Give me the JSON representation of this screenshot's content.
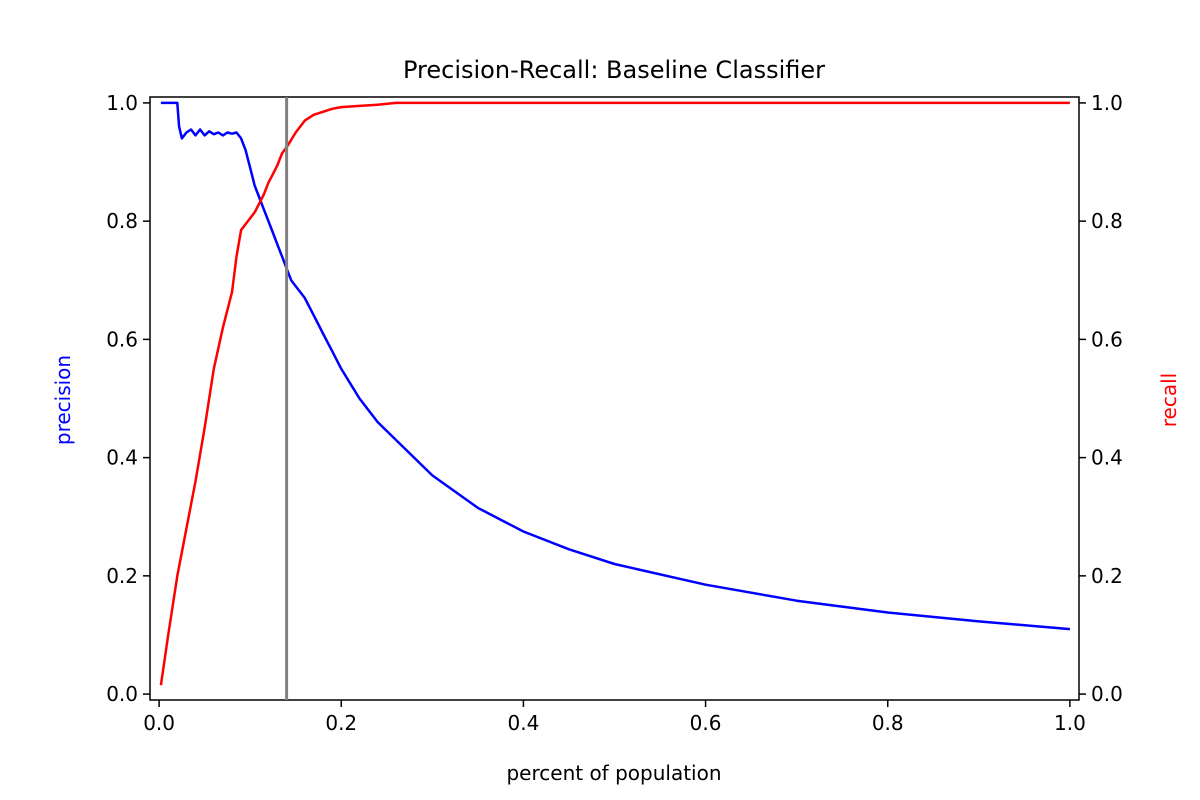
{
  "chart_data": {
    "type": "line",
    "title": "Precision-Recall: Baseline Classifier",
    "xlabel": "percent of population",
    "ylabel_left": "precision",
    "ylabel_right": "recall",
    "xlim": [
      -0.01,
      1.01
    ],
    "ylim_left": [
      -0.01,
      1.01
    ],
    "ylim_right": [
      -0.01,
      1.01
    ],
    "x_ticks": [
      "0.0",
      "0.2",
      "0.4",
      "0.6",
      "0.8",
      "1.0"
    ],
    "y_ticks_left": [
      "0.0",
      "0.2",
      "0.4",
      "0.6",
      "0.8",
      "1.0"
    ],
    "y_ticks_right": [
      "0.0",
      "0.2",
      "0.4",
      "0.6",
      "0.8",
      "1.0"
    ],
    "grid": false,
    "threshold_x": 0.14,
    "colors": {
      "precision": "#0000ff",
      "recall": "#ff0000",
      "threshold": "#808080"
    },
    "series": [
      {
        "name": "precision",
        "axis": "left",
        "x": [
          0.002,
          0.02,
          0.022,
          0.025,
          0.03,
          0.035,
          0.04,
          0.045,
          0.05,
          0.055,
          0.06,
          0.065,
          0.07,
          0.075,
          0.08,
          0.085,
          0.09,
          0.095,
          0.1,
          0.105,
          0.11,
          0.115,
          0.12,
          0.125,
          0.13,
          0.135,
          0.14,
          0.145,
          0.15,
          0.155,
          0.16,
          0.17,
          0.18,
          0.19,
          0.2,
          0.22,
          0.24,
          0.26,
          0.28,
          0.3,
          0.35,
          0.4,
          0.45,
          0.5,
          0.6,
          0.7,
          0.8,
          0.9,
          1.0
        ],
        "y": [
          1.0,
          1.0,
          0.96,
          0.94,
          0.95,
          0.955,
          0.945,
          0.955,
          0.945,
          0.952,
          0.947,
          0.95,
          0.945,
          0.95,
          0.948,
          0.95,
          0.94,
          0.92,
          0.89,
          0.86,
          0.84,
          0.82,
          0.8,
          0.78,
          0.76,
          0.74,
          0.72,
          0.7,
          0.69,
          0.68,
          0.67,
          0.64,
          0.61,
          0.58,
          0.55,
          0.5,
          0.46,
          0.43,
          0.4,
          0.37,
          0.315,
          0.275,
          0.245,
          0.22,
          0.185,
          0.158,
          0.138,
          0.123,
          0.11
        ]
      },
      {
        "name": "recall",
        "axis": "right",
        "x": [
          0.002,
          0.01,
          0.02,
          0.03,
          0.04,
          0.05,
          0.06,
          0.07,
          0.08,
          0.085,
          0.09,
          0.095,
          0.1,
          0.105,
          0.11,
          0.115,
          0.12,
          0.125,
          0.13,
          0.135,
          0.14,
          0.15,
          0.16,
          0.17,
          0.18,
          0.19,
          0.2,
          0.22,
          0.24,
          0.26,
          0.3,
          0.4,
          0.5,
          0.6,
          0.7,
          0.8,
          0.9,
          1.0
        ],
        "y": [
          0.015,
          0.1,
          0.2,
          0.28,
          0.36,
          0.45,
          0.55,
          0.62,
          0.68,
          0.74,
          0.785,
          0.795,
          0.805,
          0.815,
          0.83,
          0.845,
          0.865,
          0.88,
          0.895,
          0.915,
          0.925,
          0.95,
          0.97,
          0.98,
          0.985,
          0.99,
          0.993,
          0.995,
          0.997,
          1.0,
          1.0,
          1.0,
          1.0,
          1.0,
          1.0,
          1.0,
          1.0,
          1.0
        ]
      }
    ]
  }
}
